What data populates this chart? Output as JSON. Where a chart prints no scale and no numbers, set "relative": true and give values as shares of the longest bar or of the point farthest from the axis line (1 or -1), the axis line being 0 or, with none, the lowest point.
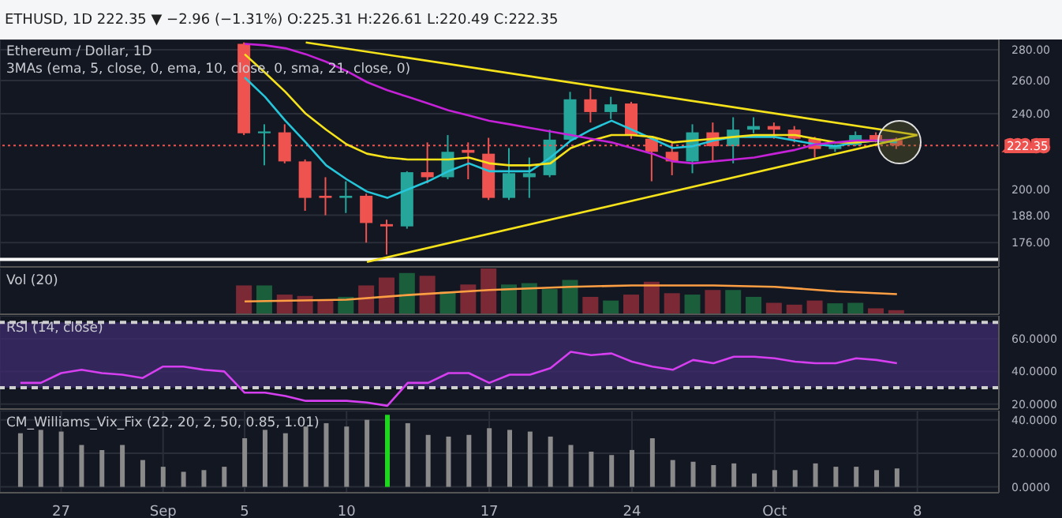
{
  "chart_data": [
    {
      "type": "candlestick",
      "title": "Ethereum / Dollar, 1D",
      "subtitle": "3MAs (ema, 5, close, 0, ema, 10, close, 0, sma, 21, close, 0)",
      "annotations": [
        "ETHUSD, 1D  222.35 ▼ −2.96 (−1.31%) O:225.31 H:226.61 L:220.49 C:222.35"
      ],
      "x": [
        "--09-05",
        "--09-06",
        "--09-07",
        "--09-08",
        "--09-09",
        "--09-10",
        "--09-11",
        "--09-12",
        "--09-13",
        "--09-14",
        "--09-15",
        "--09-16",
        "--09-17",
        "--09-18",
        "--09-19",
        "--09-20",
        "--09-21",
        "--09-22",
        "--09-23",
        "--09-24",
        "--09-25",
        "--09-26",
        "--09-27",
        "--09-28",
        "--09-29",
        "--09-30",
        "--10-01",
        "--10-02",
        "--10-03",
        "--10-04",
        "--10-05",
        "--10-06",
        "--10-07"
      ],
      "ohlc": [
        [
          284,
          285,
          228,
          229
        ],
        [
          229,
          234,
          212,
          230
        ],
        [
          229.5,
          234,
          213,
          214
        ],
        [
          214,
          215,
          190,
          196
        ],
        [
          197,
          206,
          188,
          196
        ],
        [
          196,
          204,
          189,
          197
        ],
        [
          197,
          198,
          176,
          184.5
        ],
        [
          184,
          186,
          171,
          183
        ],
        [
          183,
          209,
          182,
          208.5
        ],
        [
          208.5,
          224,
          203,
          206
        ],
        [
          206,
          228,
          205,
          219
        ],
        [
          220,
          224,
          205,
          218.5
        ],
        [
          218,
          226.5,
          195,
          196
        ],
        [
          196,
          221,
          195,
          208
        ],
        [
          206,
          216,
          196,
          208
        ],
        [
          207,
          231,
          206,
          225.5
        ],
        [
          225.5,
          253,
          225,
          248.5
        ],
        [
          248.5,
          255,
          235,
          241
        ],
        [
          241,
          250,
          237,
          245.5
        ],
        [
          246,
          247,
          226,
          228
        ],
        [
          226,
          227,
          204,
          219
        ],
        [
          219,
          224,
          207,
          214
        ],
        [
          214,
          234,
          208,
          229.5
        ],
        [
          229.5,
          235,
          214,
          222
        ],
        [
          222,
          238,
          213,
          231
        ],
        [
          231,
          238,
          229,
          233
        ],
        [
          233,
          235,
          226,
          231
        ],
        [
          231,
          233,
          224,
          226
        ],
        [
          226,
          227,
          216,
          220.5
        ],
        [
          220.5,
          223,
          219,
          222.5
        ],
        [
          222.5,
          230,
          222,
          228
        ],
        [
          228,
          229.5,
          224,
          225
        ],
        [
          225.31,
          226.61,
          220.49,
          222.35
        ]
      ],
      "series": [
        {
          "type": "line",
          "color": "#26c6da",
          "values": [
            262,
            250,
            236,
            224,
            212,
            205,
            199,
            196,
            200,
            204,
            209,
            213,
            209,
            209,
            209,
            216,
            225,
            231,
            236,
            231,
            226,
            221,
            222,
            225,
            227,
            227,
            227,
            225,
            223,
            222,
            224,
            225,
            224
          ]
        },
        {
          "type": "line",
          "color": "#f5e21b",
          "values": [
            277,
            265,
            253,
            240,
            231,
            223,
            218,
            216,
            215,
            215,
            215,
            216,
            213,
            212,
            212,
            213,
            221,
            225,
            228,
            228,
            227,
            224,
            225,
            226,
            227,
            228,
            228,
            228,
            226,
            224,
            224,
            225,
            225
          ]
        },
        {
          "type": "line",
          "color": "#c522d8",
          "values": [
            284,
            283,
            281,
            277,
            272,
            266,
            259,
            254,
            250,
            246,
            242,
            239,
            236,
            234,
            232,
            230,
            228,
            226,
            224,
            221,
            218,
            214,
            213,
            214,
            215,
            216,
            218,
            220,
            223,
            224,
            225,
            225,
            225.5
          ]
        },
        {
          "type": "line",
          "color": "#f5e21b",
          "x": [
            "--09-08",
            "--10-08"
          ],
          "values": [
            285,
            228
          ]
        },
        {
          "type": "line",
          "color": "#f5e21b",
          "x": [
            "--09-11",
            "--10-08"
          ],
          "values": [
            168,
            228
          ]
        }
      ],
      "log": true,
      "ylim": [
        166,
        287
      ],
      "yticks": [
        {
          "value": 176,
          "label": "176.00"
        },
        {
          "value": 188,
          "label": "188.00"
        },
        {
          "value": 200,
          "label": "200.00"
        },
        {
          "value": 240,
          "label": "240.00"
        },
        {
          "value": 260,
          "label": "260.00"
        },
        {
          "value": 280,
          "label": "280.00"
        }
      ],
      "xlim": [
        "--08-24",
        "--10-12"
      ],
      "xticks": [
        {
          "value": "--08-27",
          "label": null
        },
        {
          "value": "--09-01",
          "label": null
        },
        {
          "value": "--09-05",
          "label": null
        },
        {
          "value": "--09-10",
          "label": null
        },
        {
          "value": "--09-17",
          "label": null
        },
        {
          "value": "--09-24",
          "label": null
        },
        {
          "value": "--10-01",
          "label": null
        },
        {
          "value": "--10-08",
          "label": null
        }
      ],
      "grid": true,
      "tick_labels": "y",
      "ref_lines": [
        {
          "axis": "y",
          "value": 222.35,
          "label": "222.35",
          "color": "#ef5350",
          "line_style": "dotted"
        },
        {
          "axis": "y",
          "value": 169,
          "color": "#ffffff"
        }
      ]
    },
    {
      "type": "bar",
      "title": "Vol (20)",
      "relative": true,
      "x": [
        "--09-05",
        "--09-06",
        "--09-07",
        "--09-08",
        "--09-09",
        "--09-10",
        "--09-11",
        "--09-12",
        "--09-13",
        "--09-14",
        "--09-15",
        "--09-16",
        "--09-17",
        "--09-18",
        "--09-19",
        "--09-20",
        "--09-21",
        "--09-22",
        "--09-23",
        "--09-24",
        "--09-25",
        "--09-26",
        "--09-27",
        "--09-28",
        "--09-29",
        "--09-30",
        "--10-01",
        "--10-02",
        "--10-03",
        "--10-04",
        "--10-05",
        "--10-06",
        "--10-07"
      ],
      "series": [
        {
          "type": "bar",
          "values": [
            0.63,
            0.63,
            0.43,
            0.4,
            0.3,
            0.38,
            0.63,
            0.8,
            0.9,
            0.84,
            0.5,
            0.65,
            1,
            0.65,
            0.68,
            0.55,
            0.75,
            0.38,
            0.3,
            0.43,
            0.71,
            0.46,
            0.43,
            0.53,
            0.53,
            0.38,
            0.25,
            0.21,
            0.3,
            0.24,
            0.25,
            0.13,
            0.09
          ],
          "colors": [
            "#7b2a35",
            "#1b5e3b",
            "#7b2a35",
            "#7b2a35",
            "#7b2a35",
            "#1b5e3b",
            "#7b2a35",
            "#7b2a35",
            "#1b5e3b",
            "#7b2a35",
            "#1b5e3b",
            "#7b2a35",
            "#7b2a35",
            "#1b5e3b",
            "#1b5e3b",
            "#1b5e3b",
            "#1b5e3b",
            "#7b2a35",
            "#1b5e3b",
            "#7b2a35",
            "#7b2a35",
            "#7b2a35",
            "#1b5e3b",
            "#7b2a35",
            "#1b5e3b",
            "#1b5e3b",
            "#7b2a35",
            "#7b2a35",
            "#7b2a35",
            "#1b5e3b",
            "#1b5e3b",
            "#7b2a35",
            "#7b2a35"
          ]
        },
        {
          "type": "line",
          "color": "#ff9f43",
          "x": [
            "--09-05",
            "--09-10",
            "--09-13",
            "--09-17",
            "--09-21",
            "--09-24",
            "--09-28",
            "--10-01",
            "--10-04",
            "--10-07"
          ],
          "values": [
            0.28,
            0.32,
            0.42,
            0.53,
            0.6,
            0.63,
            0.63,
            0.6,
            0.5,
            0.44
          ]
        }
      ],
      "xlim": [
        "--08-24",
        "--10-12"
      ],
      "xticks": [
        {
          "value": "--08-27",
          "label": null
        },
        {
          "value": "--09-01",
          "label": null
        },
        {
          "value": "--09-05",
          "label": null
        },
        {
          "value": "--09-10",
          "label": null
        },
        {
          "value": "--09-17",
          "label": null
        },
        {
          "value": "--09-24",
          "label": null
        },
        {
          "value": "--10-01",
          "label": null
        },
        {
          "value": "--10-08",
          "label": null
        }
      ],
      "grid": "x",
      "tick_labels": false
    },
    {
      "type": "line",
      "title": "RSI (14, close)",
      "color": "#d63ff0",
      "x": [
        "--08-25",
        "--08-26",
        "--08-27",
        "--08-28",
        "--08-29",
        "--08-30",
        "--08-31",
        "--09-01",
        "--09-02",
        "--09-03",
        "--09-04",
        "--09-05",
        "--09-06",
        "--09-07",
        "--09-08",
        "--09-09",
        "--09-10",
        "--09-11",
        "--09-12",
        "--09-13",
        "--09-14",
        "--09-15",
        "--09-16",
        "--09-17",
        "--09-18",
        "--09-19",
        "--09-20",
        "--09-21",
        "--09-22",
        "--09-23",
        "--09-24",
        "--09-25",
        "--09-26",
        "--09-27",
        "--09-28",
        "--09-29",
        "--09-30",
        "--10-01",
        "--10-02",
        "--10-03",
        "--10-04",
        "--10-05",
        "--10-06",
        "--10-07"
      ],
      "values": [
        33,
        33,
        39,
        41,
        39,
        38,
        36,
        43,
        43,
        41,
        40,
        27,
        27,
        25,
        22,
        22,
        22,
        21,
        19,
        33,
        33,
        39,
        39,
        33,
        38,
        38,
        42,
        52,
        50,
        51,
        46,
        43,
        41,
        47,
        45,
        49,
        49,
        48,
        46,
        45,
        45,
        48,
        47,
        45
      ],
      "ylim": [
        17,
        74
      ],
      "yticks": [
        {
          "value": 20,
          "label": "20.0000"
        },
        {
          "value": 40,
          "label": "40.0000"
        },
        {
          "value": 60,
          "label": "60.0000"
        }
      ],
      "bands": [
        {
          "axis": "y",
          "from": 30,
          "to": 70,
          "color": "#3c2a6a"
        }
      ],
      "ref_lines": [
        {
          "axis": "y",
          "value": 70,
          "color": "#cfcfcf",
          "line_style": "dashed"
        },
        {
          "axis": "y",
          "value": 30,
          "color": "#cfcfcf",
          "line_style": "dashed"
        }
      ],
      "xlim": [
        "--08-24",
        "--10-12"
      ],
      "xticks": [
        {
          "value": "--08-27",
          "label": null
        },
        {
          "value": "--09-01",
          "label": null
        },
        {
          "value": "--09-05",
          "label": null
        },
        {
          "value": "--09-10",
          "label": null
        },
        {
          "value": "--09-17",
          "label": null
        },
        {
          "value": "--09-24",
          "label": null
        },
        {
          "value": "--10-01",
          "label": null
        },
        {
          "value": "--10-08",
          "label": null
        }
      ],
      "grid": true,
      "tick_labels": "y"
    },
    {
      "type": "bar",
      "title": "CM_Williams_Vix_Fix (22, 20, 2, 50, 0.85, 1.01)",
      "x": [
        "--08-25",
        "--08-26",
        "--08-27",
        "--08-28",
        "--08-29",
        "--08-30",
        "--08-31",
        "--09-01",
        "--09-02",
        "--09-03",
        "--09-04",
        "--09-05",
        "--09-06",
        "--09-07",
        "--09-08",
        "--09-09",
        "--09-10",
        "--09-11",
        "--09-12",
        "--09-13",
        "--09-14",
        "--09-15",
        "--09-16",
        "--09-17",
        "--09-18",
        "--09-19",
        "--09-20",
        "--09-21",
        "--09-22",
        "--09-23",
        "--09-24",
        "--09-25",
        "--09-26",
        "--09-27",
        "--09-28",
        "--09-29",
        "--09-30",
        "--10-01",
        "--10-02",
        "--10-03",
        "--10-04",
        "--10-05",
        "--10-06",
        "--10-07"
      ],
      "values": [
        32,
        34,
        33,
        25,
        22,
        25,
        16,
        12,
        9,
        10,
        12,
        29,
        34,
        32,
        36,
        38,
        36,
        40,
        43,
        38,
        31,
        30,
        31,
        35,
        34,
        33,
        30,
        25,
        21,
        19,
        22,
        29,
        16,
        15,
        13,
        14,
        8,
        10,
        10,
        14,
        12,
        12,
        10,
        11
      ],
      "colors": [
        "#8a8a8a",
        "#8a8a8a",
        "#8a8a8a",
        "#8a8a8a",
        "#8a8a8a",
        "#8a8a8a",
        "#8a8a8a",
        "#8a8a8a",
        "#8a8a8a",
        "#8a8a8a",
        "#8a8a8a",
        "#8a8a8a",
        "#8a8a8a",
        "#8a8a8a",
        "#8a8a8a",
        "#8a8a8a",
        "#8a8a8a",
        "#8a8a8a",
        "#1ed61e",
        "#8a8a8a",
        "#8a8a8a",
        "#8a8a8a",
        "#8a8a8a",
        "#8a8a8a",
        "#8a8a8a",
        "#8a8a8a",
        "#8a8a8a",
        "#8a8a8a",
        "#8a8a8a",
        "#8a8a8a",
        "#8a8a8a",
        "#8a8a8a",
        "#8a8a8a",
        "#8a8a8a",
        "#8a8a8a",
        "#8a8a8a",
        "#8a8a8a",
        "#8a8a8a",
        "#8a8a8a",
        "#8a8a8a",
        "#8a8a8a",
        "#8a8a8a",
        "#8a8a8a",
        "#8a8a8a"
      ],
      "ylim": [
        -3.5,
        45.5
      ],
      "yticks": [
        {
          "value": 0,
          "label": "0.0000"
        },
        {
          "value": 20,
          "label": "20.0000"
        },
        {
          "value": 40,
          "label": "40.0000"
        }
      ],
      "xlim": [
        "--08-24",
        "--10-12"
      ],
      "xticks": [
        {
          "value": "--08-27",
          "label": "27"
        },
        {
          "value": "--09-01",
          "label": "Sep"
        },
        {
          "value": "--09-05",
          "label": "5"
        },
        {
          "value": "--09-10",
          "label": "10"
        },
        {
          "value": "--09-17",
          "label": "17"
        },
        {
          "value": "--09-24",
          "label": "24"
        },
        {
          "value": "--10-01",
          "label": "Oct"
        },
        {
          "value": "--10-08",
          "label": "8"
        }
      ],
      "grid": true
    }
  ]
}
